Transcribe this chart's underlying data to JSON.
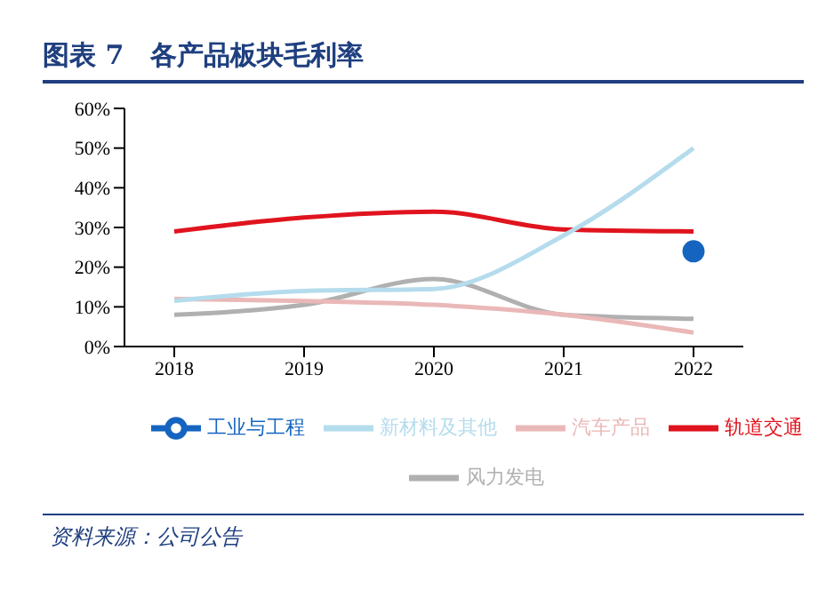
{
  "chart_data": {
    "type": "line",
    "title": "图表 7　各产品板块毛利率",
    "categories": [
      "2018",
      "2019",
      "2020",
      "2021",
      "2022"
    ],
    "series": [
      {
        "name": "轨道交通",
        "color": "#e0141e",
        "values": [
          29,
          32.5,
          34,
          29.5,
          29
        ]
      },
      {
        "name": "工业与工程",
        "color": "#1565c0",
        "values": [
          null,
          null,
          null,
          null,
          24
        ],
        "marker": "circle"
      },
      {
        "name": "风力发电",
        "color": "#b0b0b0",
        "values": [
          8,
          10.5,
          17,
          8,
          7
        ]
      },
      {
        "name": "汽车产品",
        "color": "#eab8b8",
        "values": [
          12,
          11.5,
          10.5,
          8,
          3.5
        ]
      },
      {
        "name": "新材料及其他",
        "color": "#b4dced",
        "values": [
          11.5,
          14,
          14.5,
          28,
          50
        ]
      }
    ],
    "ylim": [
      0,
      60
    ],
    "yticks": [
      {
        "value": 0,
        "label": "0%"
      },
      {
        "value": 10,
        "label": "10%"
      },
      {
        "value": 20,
        "label": "20%"
      },
      {
        "value": 30,
        "label": "30%"
      },
      {
        "value": 40,
        "label": "40%"
      },
      {
        "value": 50,
        "label": "50%"
      },
      {
        "value": 60,
        "label": "60%"
      }
    ],
    "grid": false,
    "legend": "bottom",
    "marker": "none",
    "line_style": "solid",
    "annotations": [
      "资料来源：公司公告"
    ]
  }
}
